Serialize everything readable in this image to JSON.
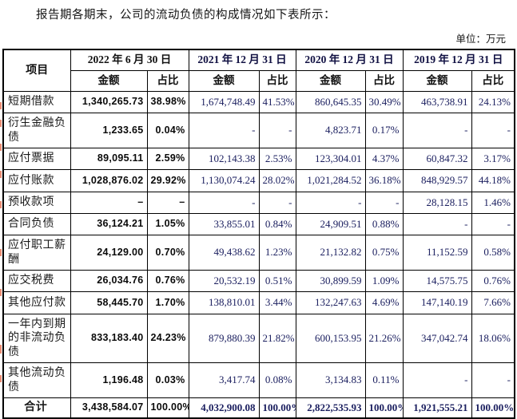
{
  "intro_text": "报告期各期末，公司的流动负债的构成情况如下表所示：",
  "unit_label": "单位：万元",
  "colors": {
    "border": "#000000",
    "latest_period_text": "#0a0a0a",
    "historic_number_text": "#1c2060",
    "edit_mark": "#ec8d74"
  },
  "table": {
    "item_header": "项目",
    "period_headers": [
      "2022 年 6 月 30 日",
      "2021 年 12 月 31 日",
      "2020 年 12 月 31 日",
      "2019 年 12 月 31 日"
    ],
    "sub_headers": [
      "金额",
      "占比"
    ],
    "rows": [
      {
        "label": "短期借款",
        "values": [
          "1,340,265.73",
          "38.98%",
          "1,674,748.49",
          "41.53%",
          "860,645.35",
          "30.49%",
          "463,738.91",
          "24.13%"
        ]
      },
      {
        "label": "衍生金融负债",
        "values": [
          "1,233.65",
          "0.04%",
          "-",
          "-",
          "4,823.71",
          "0.17%",
          "-",
          "-"
        ]
      },
      {
        "label": "应付票据",
        "values": [
          "89,095.11",
          "2.59%",
          "102,143.38",
          "2.53%",
          "123,304.01",
          "4.37%",
          "60,847.32",
          "3.17%"
        ]
      },
      {
        "label": "应付账款",
        "values": [
          "1,028,876.02",
          "29.92%",
          "1,130,074.24",
          "28.02%",
          "1,021,284.52",
          "36.18%",
          "848,929.57",
          "44.18%"
        ]
      },
      {
        "label": "预收款项",
        "values": [
          "–",
          "–",
          "-",
          "-",
          "-",
          "-",
          "28,128.15",
          "1.46%"
        ]
      },
      {
        "label": "合同负债",
        "values": [
          "36,124.21",
          "1.05%",
          "33,855.01",
          "0.84%",
          "24,909.51",
          "0.88%",
          "-",
          "-"
        ]
      },
      {
        "label": "应付职工薪酬",
        "values": [
          "24,129.00",
          "0.70%",
          "49,438.62",
          "1.23%",
          "21,132.82",
          "0.75%",
          "11,152.59",
          "0.58%"
        ]
      },
      {
        "label": "应交税费",
        "values": [
          "26,034.76",
          "0.76%",
          "20,532.19",
          "0.51%",
          "30,899.59",
          "1.09%",
          "14,575.75",
          "0.76%"
        ]
      },
      {
        "label": "其他应付款",
        "values": [
          "58,445.70",
          "1.70%",
          "138,810.01",
          "3.44%",
          "132,247.63",
          "4.69%",
          "147,140.19",
          "7.66%"
        ]
      },
      {
        "label": "一年内到期的非流动负债",
        "values": [
          "833,183.40",
          "24.23%",
          "879,880.39",
          "21.82%",
          "600,153.95",
          "21.26%",
          "347,042.74",
          "18.06%"
        ]
      },
      {
        "label": "其他流动负债",
        "values": [
          "1,196.48",
          "0.03%",
          "3,417.74",
          "0.08%",
          "3,134.83",
          "0.11%",
          "-",
          "-"
        ]
      },
      {
        "label": "合计",
        "total": true,
        "values": [
          "3,438,584.07",
          "100.00%",
          "4,032,900.08",
          "100.00%",
          "2,822,535.93",
          "100.00%",
          "1,921,555.21",
          "100.00%"
        ]
      }
    ]
  }
}
